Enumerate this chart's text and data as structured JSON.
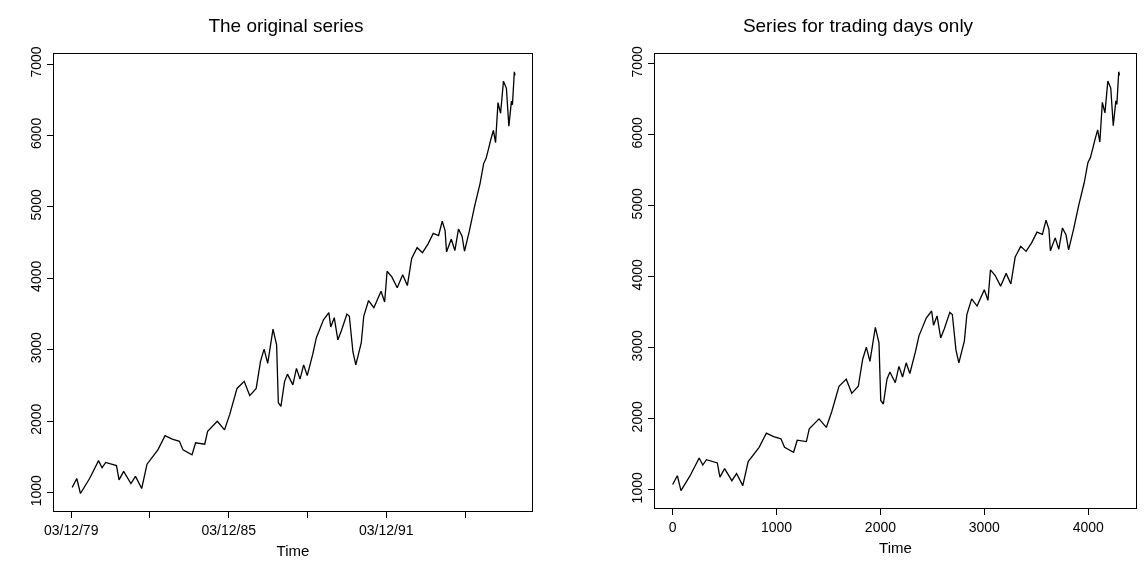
{
  "chart_data": [
    {
      "type": "line",
      "title": "The original series",
      "xlabel": "Time",
      "x": [
        "1979-12-17",
        "1980-02-19",
        "1980-04-10",
        "1980-08-15",
        "1980-11-23",
        "1980-12-17",
        "1981-02-05",
        "1981-03-27",
        "1981-08-24",
        "1981-09-29",
        "1981-12-02",
        "1982-03-13",
        "1982-05-16",
        "1982-08-10",
        "1982-10-23",
        "1983-03-23",
        "1983-07-01",
        "1983-10-09",
        "1984-01-17",
        "1984-03-07",
        "1984-07-10",
        "1984-08-29",
        "1985-01-03",
        "1985-02-12",
        "1985-06-27",
        "1985-10-05",
        "1985-12-18",
        "1986-03-28",
        "1986-07-06",
        "1986-09-21",
        "1986-12-20",
        "1987-02-18",
        "1987-04-09",
        "1987-05-29",
        "1987-08-11",
        "1987-09-30",
        "1987-10-24",
        "1987-11-29",
        "1988-01-19",
        "1988-02-28",
        "1988-05-13",
        "1988-07-02",
        "1988-08-21",
        "1988-10-10",
        "1988-11-29",
        "1989-02-14",
        "1989-04-05",
        "1989-07-13",
        "1989-09-26",
        "1989-10-22",
        "1989-12-10",
        "1990-01-29",
        "1990-03-20",
        "1990-06-04",
        "1990-07-08",
        "1990-08-27",
        "1990-10-06",
        "1990-12-21",
        "1991-01-24",
        "1991-04-01",
        "1991-06-14",
        "1991-09-22",
        "1991-11-11",
        "1991-12-15",
        "1992-02-19",
        "1992-05-04",
        "1992-07-19",
        "1992-09-22",
        "1992-11-21",
        "1993-02-05",
        "1993-04-20",
        "1993-07-05",
        "1993-09-17",
        "1993-11-30",
        "1994-01-20",
        "1994-03-01",
        "1994-03-21",
        "1994-05-26",
        "1994-07-15",
        "1994-09-03",
        "1994-10-23",
        "1994-11-26",
        "1995-02-01",
        "1995-04-16",
        "1995-07-01",
        "1995-08-20",
        "1995-09-23",
        "1995-11-02",
        "1995-11-26",
        "1996-01-02",
        "1996-02-01",
        "1996-03-06",
        "1996-04-11",
        "1996-05-21",
        "1996-07-01",
        "1996-08-04",
        "1996-09-09",
        "1996-09-23",
        "1996-10-19",
        "1996-10-29"
      ],
      "series": [
        {
          "color": "#000000",
          "values": [
            1075,
            1200,
            990,
            1200,
            1400,
            1450,
            1350,
            1425,
            1380,
            1180,
            1300,
            1130,
            1230,
            1060,
            1400,
            1600,
            1800,
            1750,
            1720,
            1600,
            1530,
            1700,
            1680,
            1860,
            2000,
            1880,
            2100,
            2460,
            2560,
            2360,
            2460,
            2840,
            3010,
            2810,
            3290,
            3070,
            2260,
            2210,
            2560,
            2660,
            2510,
            2740,
            2590,
            2790,
            2640,
            2940,
            3170,
            3420,
            3520,
            3320,
            3450,
            3140,
            3270,
            3500,
            3470,
            2970,
            2790,
            3100,
            3470,
            3690,
            3590,
            3820,
            3670,
            4100,
            4020,
            3870,
            4050,
            3900,
            4280,
            4430,
            4360,
            4480,
            4630,
            4600,
            4800,
            4670,
            4370,
            4550,
            4390,
            4690,
            4590,
            4380,
            4660,
            5010,
            5330,
            5610,
            5680,
            5840,
            5940,
            6070,
            5900,
            6460,
            6310,
            6760,
            6660,
            6130,
            6480,
            6430,
            6890,
            6840
          ]
        }
      ],
      "xlim": [
        "1979-04-08",
        "1997-06-22"
      ],
      "xticks": [
        {
          "value": "1979-12-03",
          "label": "03/12/79"
        },
        {
          "value": "1982-12-03",
          "label": null
        },
        {
          "value": "1985-12-03",
          "label": "03/12/85"
        },
        {
          "value": "1988-12-03",
          "label": null
        },
        {
          "value": "1991-12-03",
          "label": "03/12/91"
        },
        {
          "value": "1994-12-03",
          "label": null
        }
      ],
      "ylim": [
        745,
        7140
      ],
      "yticks": [
        1000,
        2000,
        3000,
        4000,
        5000,
        6000,
        7000
      ]
    },
    {
      "type": "line",
      "title": "Series for trading days only",
      "xlabel": "Time",
      "x": [
        0,
        45,
        80,
        168,
        238,
        255,
        290,
        325,
        430,
        455,
        500,
        570,
        615,
        675,
        727,
        832,
        902,
        972,
        1042,
        1077,
        1164,
        1199,
        1287,
        1315,
        1409,
        1479,
        1531,
        1601,
        1671,
        1724,
        1787,
        1829,
        1864,
        1899,
        1951,
        1986,
        2003,
        2028,
        2063,
        2091,
        2143,
        2178,
        2213,
        2248,
        2283,
        2336,
        2371,
        2441,
        2493,
        2511,
        2545,
        2580,
        2615,
        2668,
        2692,
        2727,
        2755,
        2808,
        2832,
        2878,
        2930,
        3000,
        3035,
        3059,
        3105,
        3157,
        3210,
        3255,
        3297,
        3350,
        3402,
        3455,
        3507,
        3559,
        3594,
        3622,
        3636,
        3682,
        3717,
        3752,
        3787,
        3811,
        3857,
        3909,
        3962,
        3997,
        4021,
        4049,
        4066,
        4091,
        4112,
        4136,
        4161,
        4189,
        4217,
        4241,
        4266,
        4276,
        4294,
        4301
      ],
      "series": [
        {
          "color": "#000000",
          "values": [
            1075,
            1200,
            990,
            1200,
            1400,
            1450,
            1350,
            1425,
            1380,
            1180,
            1300,
            1130,
            1230,
            1060,
            1400,
            1600,
            1800,
            1750,
            1720,
            1600,
            1530,
            1700,
            1680,
            1860,
            2000,
            1880,
            2100,
            2460,
            2560,
            2360,
            2460,
            2840,
            3010,
            2810,
            3290,
            3070,
            2260,
            2210,
            2560,
            2660,
            2510,
            2740,
            2590,
            2790,
            2640,
            2940,
            3170,
            3420,
            3520,
            3320,
            3450,
            3140,
            3270,
            3500,
            3470,
            2970,
            2790,
            3100,
            3470,
            3690,
            3590,
            3820,
            3670,
            4100,
            4020,
            3870,
            4050,
            3900,
            4280,
            4430,
            4360,
            4480,
            4630,
            4600,
            4800,
            4670,
            4370,
            4550,
            4390,
            4690,
            4590,
            4380,
            4660,
            5010,
            5330,
            5610,
            5680,
            5840,
            5940,
            6070,
            5900,
            6460,
            6310,
            6760,
            6660,
            6130,
            6480,
            6430,
            6890,
            6840
          ]
        }
      ],
      "xlim": [
        -170,
        4460
      ],
      "xticks": [
        0,
        1000,
        2000,
        3000,
        4000
      ],
      "ylim": [
        745,
        7140
      ],
      "yticks": [
        1000,
        2000,
        3000,
        4000,
        5000,
        6000,
        7000
      ]
    }
  ]
}
